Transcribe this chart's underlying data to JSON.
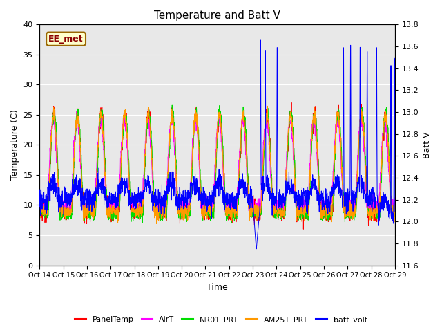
{
  "title": "Temperature and Batt V",
  "xlabel": "Time",
  "ylabel_left": "Temperature (C)",
  "ylabel_right": "Batt V",
  "annotation": "EE_met",
  "ylim_left": [
    0,
    40
  ],
  "ylim_right": [
    11.6,
    13.8
  ],
  "xtick_labels": [
    "Oct 14",
    "Oct 15",
    "Oct 16",
    "Oct 17",
    "Oct 18",
    "Oct 19",
    "Oct 20",
    "Oct 21",
    "Oct 22",
    "Oct 23",
    "Oct 24",
    "Oct 25",
    "Oct 26",
    "Oct 27",
    "Oct 28",
    "Oct 29"
  ],
  "yticks_left": [
    0,
    5,
    10,
    15,
    20,
    25,
    30,
    35,
    40
  ],
  "yticks_right": [
    11.6,
    11.8,
    12.0,
    12.2,
    12.4,
    12.6,
    12.8,
    13.0,
    13.2,
    13.4,
    13.6,
    13.8
  ],
  "colors": {
    "PanelTemp": "#ff0000",
    "AirT": "#ff00ff",
    "NR01_PRT": "#00dd00",
    "AM25T_PRT": "#ff9900",
    "batt_volt": "#0000ff"
  },
  "legend_entries": [
    "PanelTemp",
    "AirT",
    "NR01_PRT",
    "AM25T_PRT",
    "batt_volt"
  ],
  "plot_bg": "#e8e8e8",
  "n_days": 15,
  "pts_per_day": 144
}
